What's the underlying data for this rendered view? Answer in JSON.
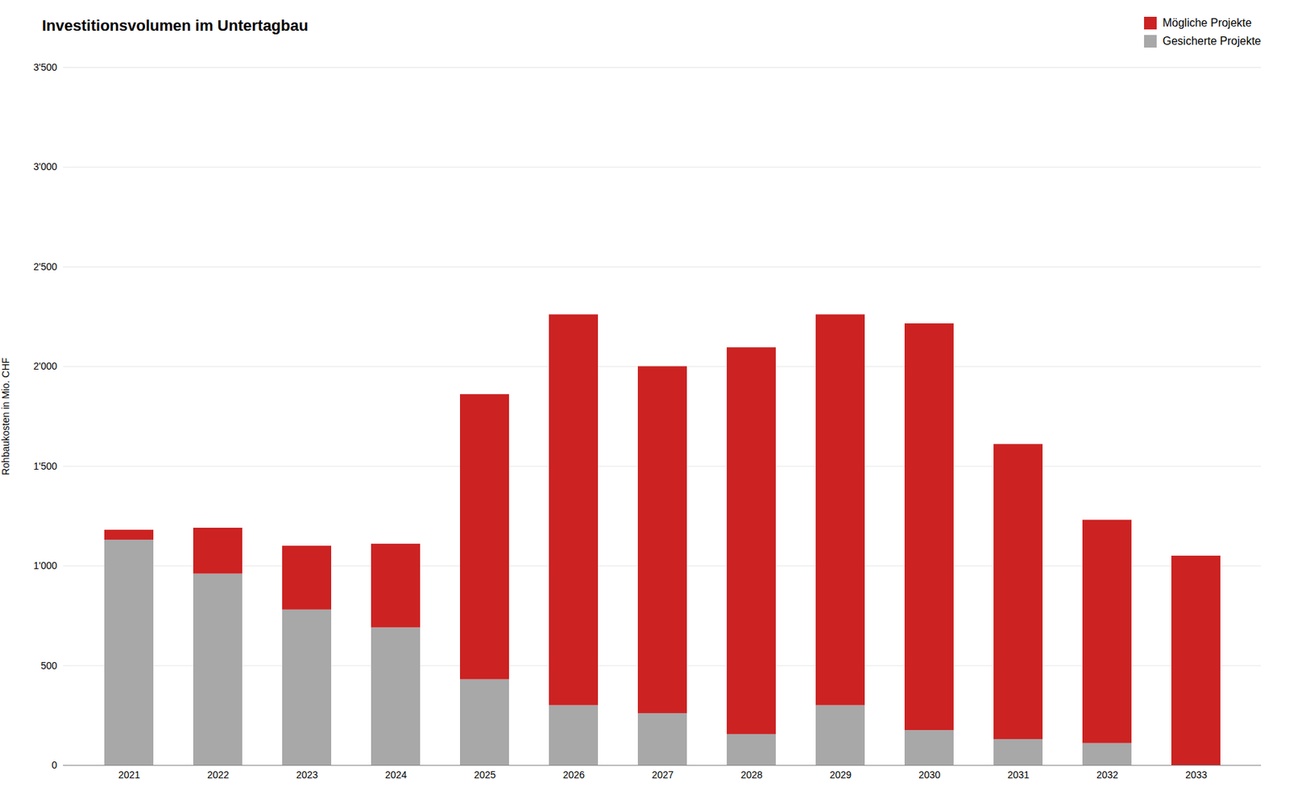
{
  "chart_data": {
    "type": "bar",
    "stacked": true,
    "title": "Investitionsvolumen im Untertagbau",
    "y_label": "Rohbaukosten in Mio. CHF",
    "categories": [
      "2021",
      "2022",
      "2023",
      "2024",
      "2025",
      "2026",
      "2027",
      "2028",
      "2029",
      "2030",
      "2031",
      "2032",
      "2033"
    ],
    "series": [
      {
        "name": "Gesicherte Projekte",
        "color": "#a8a8a8",
        "values": [
          1130,
          960,
          780,
          690,
          430,
          300,
          260,
          155,
          300,
          175,
          130,
          110,
          0
        ]
      },
      {
        "name": "Mögliche Projekte",
        "color": "#cc2222",
        "values": [
          50,
          230,
          320,
          420,
          1430,
          1960,
          1740,
          1940,
          1960,
          2040,
          1480,
          1120,
          1050
        ]
      }
    ],
    "ylim": [
      0,
      3500
    ],
    "yticks": [
      0,
      500,
      {
        "value": 1000,
        "label": "1'000"
      },
      {
        "value": 1500,
        "label": "1'500"
      },
      {
        "value": 2000,
        "label": "2'000"
      },
      {
        "value": 2500,
        "label": "2'500"
      },
      {
        "value": 3000,
        "label": "3'000"
      },
      {
        "value": 3500,
        "label": "3'500"
      }
    ],
    "grid": true,
    "legend": "upper right"
  }
}
